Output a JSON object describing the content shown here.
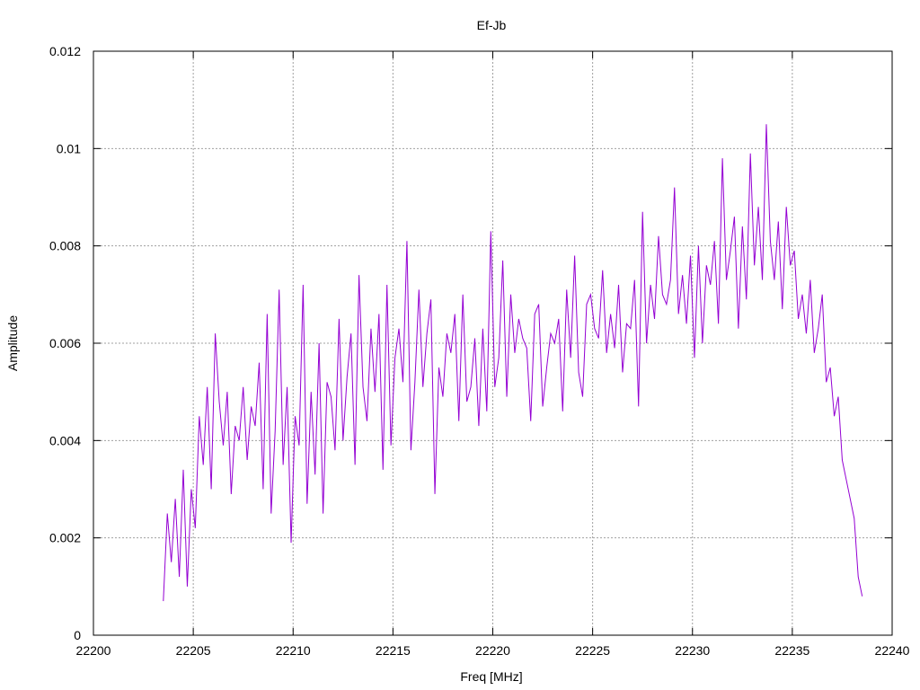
{
  "chart_data": {
    "type": "line",
    "title": "Ef-Jb",
    "xlabel": "Freq [MHz]",
    "ylabel": "Amplitude",
    "xlim": [
      22200,
      22240
    ],
    "ylim": [
      0,
      0.012
    ],
    "x_ticks": [
      "22200",
      "22205",
      "22210",
      "22215",
      "22220",
      "22225",
      "22230",
      "22235",
      "22240"
    ],
    "y_ticks": [
      "0",
      "0.002",
      "0.004",
      "0.006",
      "0.008",
      "0.01",
      "0.012"
    ],
    "grid": true,
    "series_color": "#9400d3",
    "series": [
      {
        "x_start": 22203.5,
        "x_step": 0.2,
        "values": [
          0.0007,
          0.0025,
          0.0015,
          0.0028,
          0.0012,
          0.0034,
          0.001,
          0.003,
          0.0022,
          0.0045,
          0.0035,
          0.0051,
          0.003,
          0.0062,
          0.0048,
          0.0039,
          0.005,
          0.0029,
          0.0043,
          0.004,
          0.0051,
          0.0036,
          0.0047,
          0.0043,
          0.0056,
          0.003,
          0.0066,
          0.0025,
          0.0042,
          0.0071,
          0.0035,
          0.0051,
          0.0019,
          0.0045,
          0.0039,
          0.0072,
          0.0027,
          0.005,
          0.0033,
          0.006,
          0.0025,
          0.0052,
          0.0049,
          0.0038,
          0.0065,
          0.004,
          0.0053,
          0.0062,
          0.0035,
          0.0074,
          0.0051,
          0.0044,
          0.0063,
          0.005,
          0.0066,
          0.0034,
          0.0072,
          0.0039,
          0.0057,
          0.0063,
          0.0052,
          0.0081,
          0.0038,
          0.0052,
          0.0071,
          0.0051,
          0.0062,
          0.0069,
          0.0029,
          0.0055,
          0.0049,
          0.0062,
          0.0058,
          0.0066,
          0.0044,
          0.007,
          0.0048,
          0.0051,
          0.0061,
          0.0043,
          0.0063,
          0.0046,
          0.0083,
          0.0051,
          0.0057,
          0.0077,
          0.0049,
          0.007,
          0.0058,
          0.0065,
          0.0061,
          0.0059,
          0.0044,
          0.0066,
          0.0068,
          0.0047,
          0.0055,
          0.0062,
          0.006,
          0.0065,
          0.0046,
          0.0071,
          0.0057,
          0.0078,
          0.0054,
          0.0049,
          0.0068,
          0.007,
          0.0063,
          0.0061,
          0.0075,
          0.0058,
          0.0066,
          0.0059,
          0.0072,
          0.0054,
          0.0064,
          0.0063,
          0.0073,
          0.0047,
          0.0087,
          0.006,
          0.0072,
          0.0065,
          0.0082,
          0.007,
          0.0068,
          0.0073,
          0.0092,
          0.0066,
          0.0074,
          0.0064,
          0.0078,
          0.0057,
          0.008,
          0.006,
          0.0076,
          0.0072,
          0.0081,
          0.0064,
          0.0098,
          0.0073,
          0.0079,
          0.0086,
          0.0063,
          0.0084,
          0.0069,
          0.0099,
          0.0076,
          0.0088,
          0.0073,
          0.0105,
          0.0081,
          0.0073,
          0.0085,
          0.0067,
          0.0088,
          0.0076,
          0.0079,
          0.0065,
          0.007,
          0.0062,
          0.0073,
          0.0058,
          0.0063,
          0.007,
          0.0052,
          0.0055,
          0.0045,
          0.0049,
          0.0036,
          0.0032,
          0.0028,
          0.0024,
          0.0012,
          0.0008
        ]
      }
    ]
  }
}
